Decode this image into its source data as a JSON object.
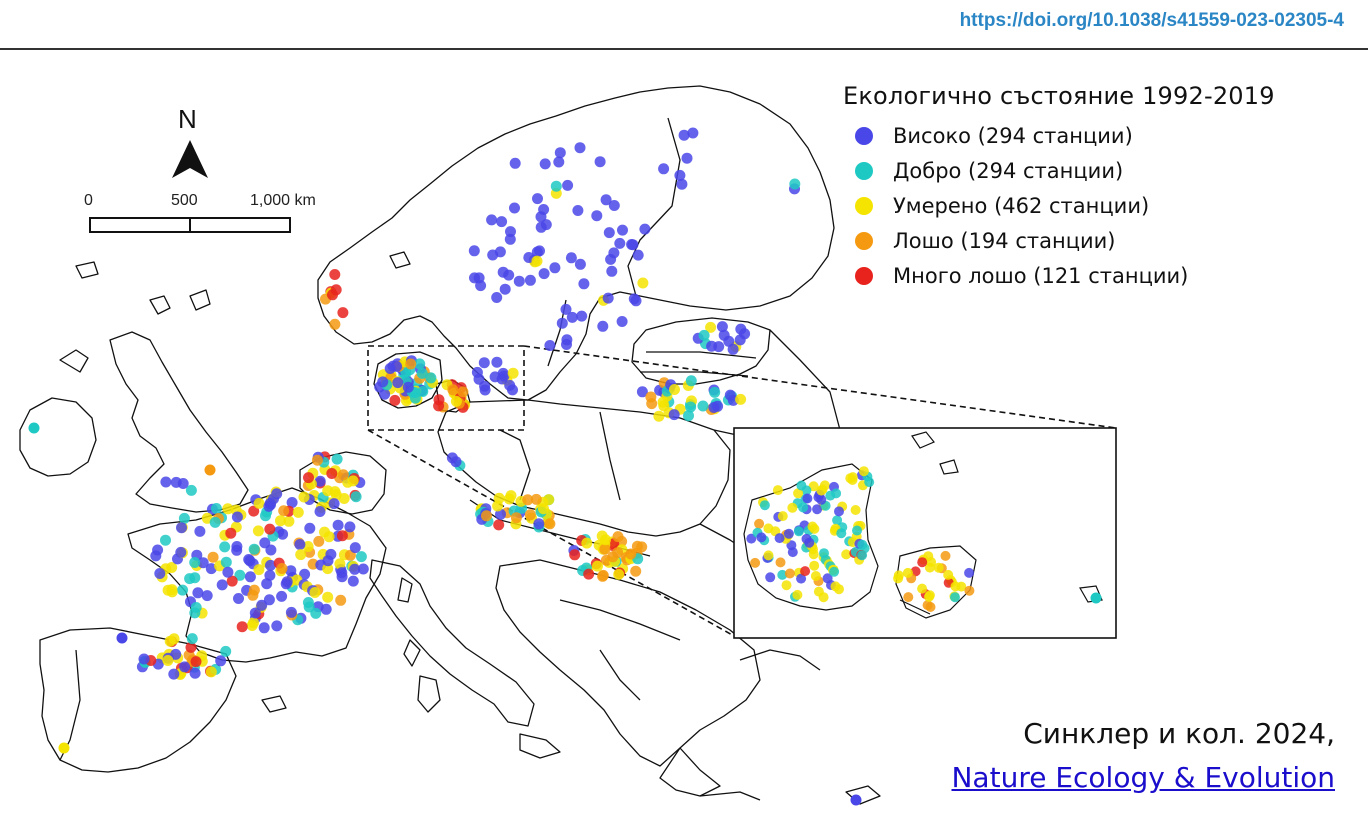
{
  "doi": "https://doi.org/10.1038/s41559-023-02305-4",
  "north_label": "N",
  "scale": {
    "labels": [
      "0",
      "500",
      "1,000 km"
    ]
  },
  "legend": {
    "title": "Екологично състояние 1992-2019",
    "items": [
      {
        "label": "Високо (294 станции)",
        "color": "#4a47e8"
      },
      {
        "label": "Добро (294 станции)",
        "color": "#1ec9c4"
      },
      {
        "label": "Умерено (462 станции)",
        "color": "#f5e400"
      },
      {
        "label": "Лошо (194 станции)",
        "color": "#f59a10"
      },
      {
        "label": "Много лошо (121 станции)",
        "color": "#e8231e"
      }
    ]
  },
  "citation": {
    "line1": "Синклер и кол. 2024,",
    "link": "Nature Ecology & Evolution"
  }
}
